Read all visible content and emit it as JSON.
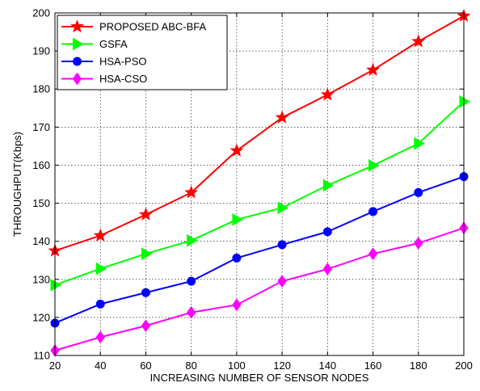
{
  "chart_data": {
    "type": "line",
    "title": "",
    "xlabel": "INCREASING NUMBER OF SENSOR NODES",
    "ylabel": "THROUGHPUT(Kbps)",
    "x": [
      20,
      40,
      60,
      80,
      100,
      120,
      140,
      160,
      180,
      200
    ],
    "xlim": [
      20,
      200
    ],
    "ylim": [
      110,
      200
    ],
    "xticks": [
      20,
      40,
      60,
      80,
      100,
      120,
      140,
      160,
      180,
      200
    ],
    "yticks": [
      110,
      120,
      130,
      140,
      150,
      160,
      170,
      180,
      190,
      200
    ],
    "grid": true,
    "legend_position": "top-left",
    "series": [
      {
        "name": "PROPOSED ABC-BFA",
        "color": "#ff0000",
        "marker": "star",
        "values": [
          137.5,
          141.5,
          147,
          152.8,
          163.8,
          172.5,
          178.5,
          185,
          192.5,
          199.2
        ]
      },
      {
        "name": "GSFA",
        "color": "#00ff00",
        "marker": "triangle-right",
        "values": [
          128.5,
          132.8,
          136.7,
          140.2,
          145.7,
          148.8,
          154.7,
          159.9,
          165.7,
          176.7
        ]
      },
      {
        "name": "HSA-PSO",
        "color": "#0000ff",
        "marker": "circle",
        "values": [
          118.5,
          123.5,
          126.5,
          129.5,
          135.6,
          139.1,
          142.5,
          147.8,
          152.8,
          157
        ]
      },
      {
        "name": "HSA-CSO",
        "color": "#ff00ff",
        "marker": "diamond",
        "values": [
          111.3,
          114.8,
          117.8,
          121.3,
          123.3,
          129.5,
          132.7,
          136.7,
          139.5,
          143.5
        ]
      }
    ]
  }
}
